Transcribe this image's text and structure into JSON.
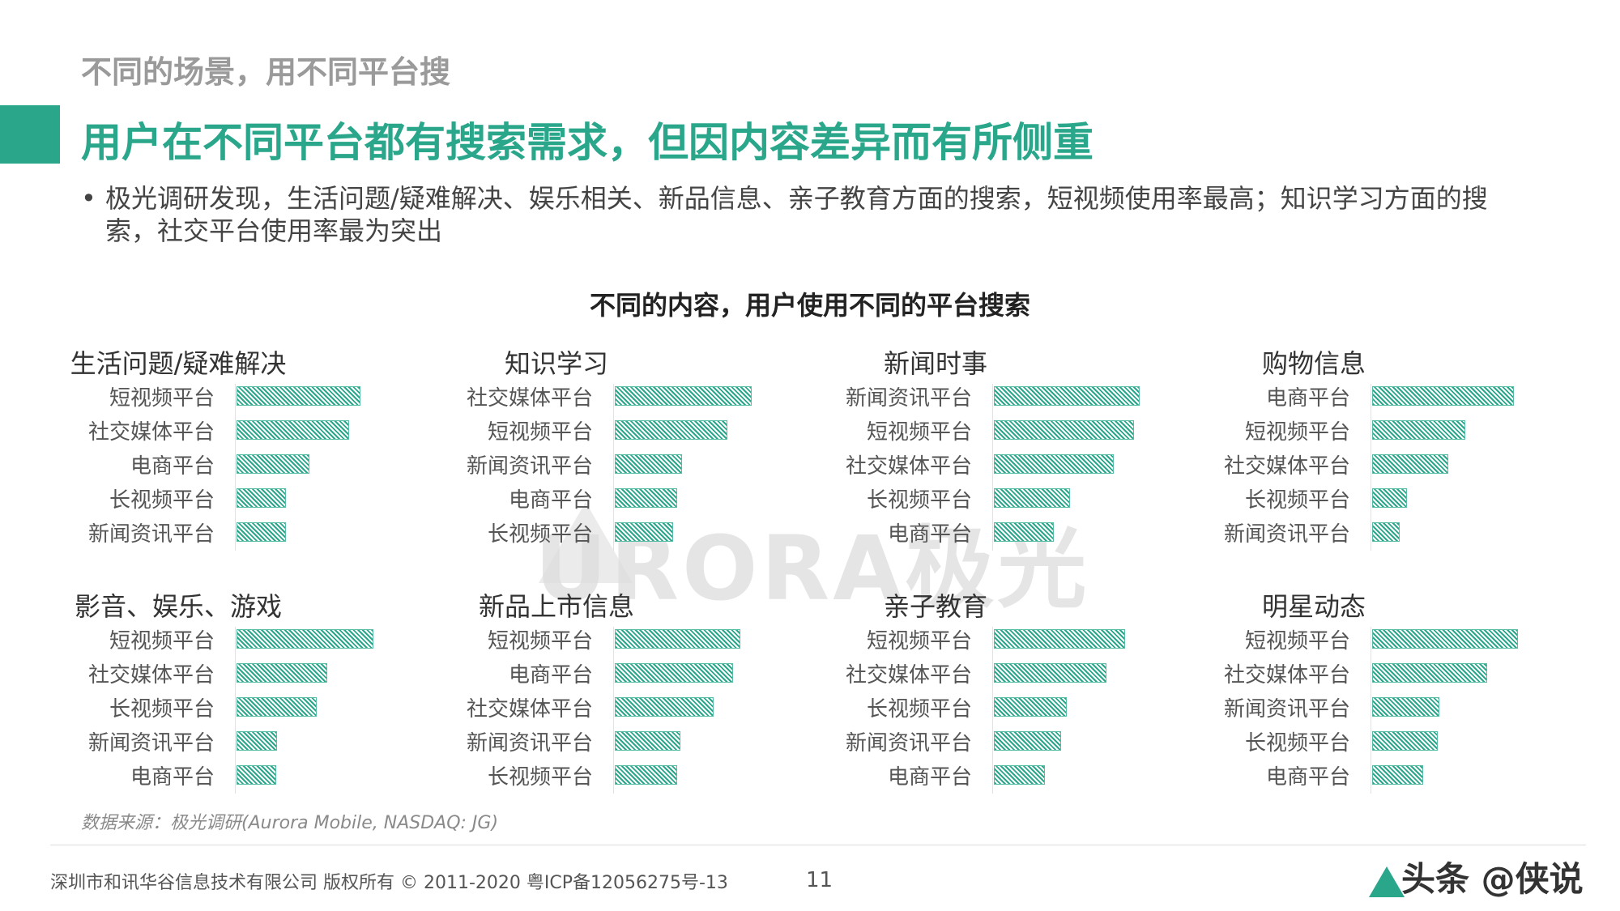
{
  "header": {
    "kicker": "不同的场景，用不同平台搜",
    "headline": "用户在不同平台都有搜索需求，但因内容差异而有所侧重",
    "bullet_symbol": "•",
    "bullet": "极光调研发现，生活问题/疑难解决、娱乐相关、新品信息、亲子教育方面的搜索，短视频使用率最高；知识学习方面的搜索，社交平台使用率最为突出"
  },
  "watermark": {
    "text": "URORA极光"
  },
  "colors": {
    "accent": "#2aa68b",
    "bar_hatch": "#2aa68b"
  },
  "chart_data": {
    "type": "bar",
    "orientation": "horizontal",
    "title": "不同的内容，用户使用不同的平台搜索",
    "value_axis_shown": false,
    "xlim": [
      0,
      1
    ],
    "panels": [
      {
        "title": "生活问题/疑难解决",
        "categories": [
          "短视频平台",
          "社交媒体平台",
          "电商平台",
          "长视频平台",
          "新闻资讯平台"
        ],
        "values": [
          0.85,
          0.77,
          0.5,
          0.34,
          0.34
        ]
      },
      {
        "title": "知识学习",
        "categories": [
          "社交媒体平台",
          "短视频平台",
          "新闻资讯平台",
          "电商平台",
          "长视频平台"
        ],
        "values": [
          0.94,
          0.77,
          0.46,
          0.43,
          0.4
        ]
      },
      {
        "title": "新闻时事",
        "categories": [
          "新闻资讯平台",
          "短视频平台",
          "社交媒体平台",
          "长视频平台",
          "电商平台"
        ],
        "values": [
          1.0,
          0.96,
          0.82,
          0.52,
          0.41
        ]
      },
      {
        "title": "购物信息",
        "categories": [
          "电商平台",
          "短视频平台",
          "社交媒体平台",
          "长视频平台",
          "新闻资讯平台"
        ],
        "values": [
          0.97,
          0.64,
          0.52,
          0.24,
          0.19
        ]
      },
      {
        "title": "影音、娱乐、游戏",
        "categories": [
          "短视频平台",
          "社交媒体平台",
          "长视频平台",
          "新闻资讯平台",
          "电商平台"
        ],
        "values": [
          0.94,
          0.62,
          0.55,
          0.28,
          0.27
        ]
      },
      {
        "title": "新品上市信息",
        "categories": [
          "短视频平台",
          "电商平台",
          "社交媒体平台",
          "新闻资讯平台",
          "长视频平台"
        ],
        "values": [
          0.86,
          0.81,
          0.68,
          0.45,
          0.43
        ]
      },
      {
        "title": "亲子教育",
        "categories": [
          "短视频平台",
          "社交媒体平台",
          "长视频平台",
          "新闻资讯平台",
          "电商平台"
        ],
        "values": [
          0.9,
          0.77,
          0.5,
          0.46,
          0.35
        ]
      },
      {
        "title": "明星动态",
        "categories": [
          "短视频平台",
          "社交媒体平台",
          "新闻资讯平台",
          "长视频平台",
          "电商平台"
        ],
        "values": [
          1.0,
          0.79,
          0.46,
          0.45,
          0.35
        ]
      }
    ]
  },
  "footer": {
    "source": "数据来源：极光调研(Aurora Mobile, NASDAQ: JG)",
    "copyright": "深圳市和讯华谷信息技术有限公司 版权所有 © 2011-2020 粤ICP备12056275号-13",
    "page_number": "11",
    "brand_overlay": "头条 @侠说"
  }
}
